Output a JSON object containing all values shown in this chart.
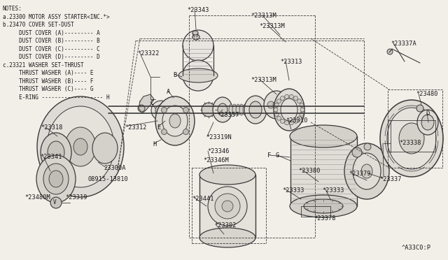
{
  "bg_color": "#f2efe9",
  "line_color": "#3a3a3a",
  "text_color": "#1a1a1a",
  "notes_lines": [
    "NOTES:",
    "a.23300 MOTOR ASSY STARTER<INC.*>",
    "b.23470 COVER SET-DUST",
    "     DUST COVER (A)--------- A",
    "     DUST COVER (B)--------- B",
    "     DUST COVER (C)--------- C",
    "     DUST COVER (D)--------- D",
    "c.23321 WASHER SET-THRUST",
    "     THRUST WASHER (A)---- E",
    "     THRUST WASHER (B)---- F",
    "     THRUST WASHER (C)---- G",
    "     E-RING ------------------- H"
  ],
  "font_size_notes": 5.5,
  "font_size_labels": 6.2,
  "font_size_ref": 5.0
}
